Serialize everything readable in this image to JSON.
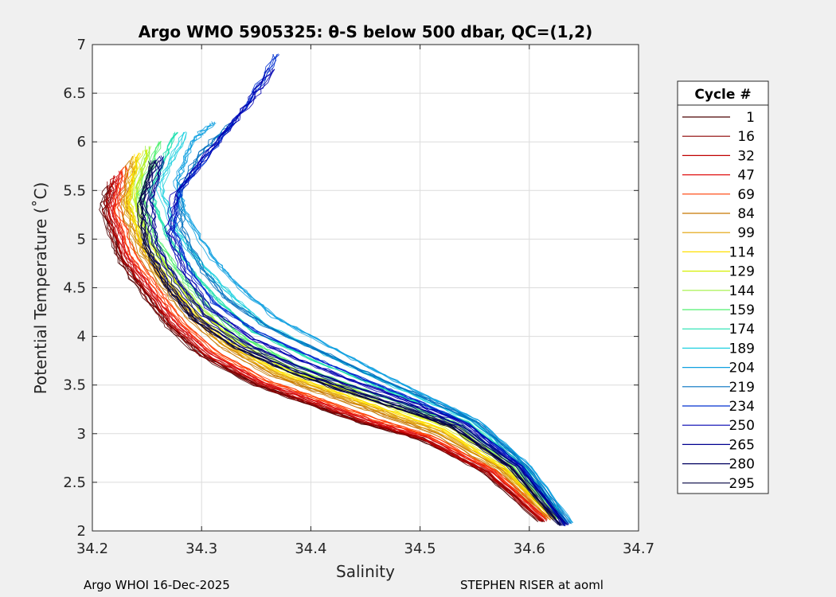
{
  "chart_data": {
    "type": "line",
    "title": "Argo WMO 5905325: θ-S below 500 dbar,  QC=(1,2)",
    "xlabel": "Salinity",
    "ylabel": "Potential Temperature (˚C)",
    "xlim": [
      34.2,
      34.7
    ],
    "ylim": [
      2,
      7
    ],
    "x_ticks": [
      "34.2",
      "34.3",
      "34.4",
      "34.5",
      "34.6",
      "34.7"
    ],
    "y_ticks": [
      "2",
      "2.5",
      "3",
      "3.5",
      "4",
      "4.5",
      "5",
      "5.5",
      "6",
      "6.5",
      "7"
    ],
    "grid": true,
    "legend": {
      "title": "Cycle #",
      "placement": "right",
      "entries": [
        {
          "label": "1",
          "color": "#4a0000"
        },
        {
          "label": "16",
          "color": "#8b0000"
        },
        {
          "label": "32",
          "color": "#c00000"
        },
        {
          "label": "47",
          "color": "#e01010"
        },
        {
          "label": "69",
          "color": "#ff3b00"
        },
        {
          "label": "84",
          "color": "#c87800"
        },
        {
          "label": "99",
          "color": "#e0a000"
        },
        {
          "label": "114",
          "color": "#ffe000"
        },
        {
          "label": "129",
          "color": "#d6f000"
        },
        {
          "label": "144",
          "color": "#a0f040"
        },
        {
          "label": "159",
          "color": "#50f070"
        },
        {
          "label": "174",
          "color": "#20e0b0"
        },
        {
          "label": "189",
          "color": "#20d0e0"
        },
        {
          "label": "204",
          "color": "#10a0e0"
        },
        {
          "label": "219",
          "color": "#0070c0"
        },
        {
          "label": "234",
          "color": "#0030d0"
        },
        {
          "label": "250",
          "color": "#0000b0"
        },
        {
          "label": "265",
          "color": "#000090"
        },
        {
          "label": "280",
          "color": "#000060"
        },
        {
          "label": "295",
          "color": "#000040"
        }
      ]
    },
    "series": [
      {
        "name": "1",
        "color": "#4a0000",
        "x": [
          34.61,
          34.56,
          34.5,
          34.45,
          34.4,
          34.35,
          34.3,
          34.27,
          34.25,
          34.225,
          34.21,
          34.215
        ],
        "y": [
          2.1,
          2.6,
          2.95,
          3.1,
          3.3,
          3.5,
          3.8,
          4.1,
          4.4,
          4.8,
          5.3,
          5.55
        ]
      },
      {
        "name": "16",
        "color": "#8b0000",
        "x": [
          34.612,
          34.562,
          34.502,
          34.452,
          34.402,
          34.352,
          34.302,
          34.272,
          34.252,
          34.227,
          34.213,
          34.218
        ],
        "y": [
          2.1,
          2.6,
          2.95,
          3.1,
          3.3,
          3.5,
          3.8,
          4.1,
          4.4,
          4.8,
          5.3,
          5.6
        ]
      },
      {
        "name": "32",
        "color": "#c00000",
        "x": [
          34.614,
          34.564,
          34.504,
          34.454,
          34.404,
          34.354,
          34.305,
          34.275,
          34.255,
          34.23,
          34.216,
          34.222
        ],
        "y": [
          2.1,
          2.6,
          2.95,
          3.12,
          3.32,
          3.52,
          3.82,
          4.12,
          4.42,
          4.82,
          5.3,
          5.65
        ]
      },
      {
        "name": "47",
        "color": "#e01010",
        "x": [
          34.615,
          34.566,
          34.506,
          34.456,
          34.406,
          34.356,
          34.308,
          34.278,
          34.258,
          34.233,
          34.219,
          34.226
        ],
        "y": [
          2.12,
          2.62,
          2.97,
          3.13,
          3.33,
          3.53,
          3.83,
          4.13,
          4.43,
          4.83,
          5.32,
          5.7
        ]
      },
      {
        "name": "69",
        "color": "#ff3b00",
        "x": [
          34.617,
          34.568,
          34.508,
          34.458,
          34.408,
          34.358,
          34.311,
          34.281,
          34.261,
          34.236,
          34.222,
          34.23
        ],
        "y": [
          2.12,
          2.62,
          2.98,
          3.15,
          3.35,
          3.55,
          3.85,
          4.15,
          4.45,
          4.85,
          5.33,
          5.75
        ]
      },
      {
        "name": "84",
        "color": "#c87800",
        "x": [
          34.62,
          34.572,
          34.514,
          34.464,
          34.414,
          34.364,
          34.318,
          34.288,
          34.266,
          34.242,
          34.228,
          34.236
        ],
        "y": [
          2.12,
          2.64,
          3.0,
          3.2,
          3.4,
          3.6,
          3.9,
          4.2,
          4.5,
          4.9,
          5.35,
          5.8
        ]
      },
      {
        "name": "99",
        "color": "#e0a000",
        "x": [
          34.621,
          34.574,
          34.517,
          34.467,
          34.417,
          34.367,
          34.32,
          34.29,
          34.268,
          34.244,
          34.23,
          34.239
        ],
        "y": [
          2.12,
          2.64,
          3.02,
          3.22,
          3.42,
          3.62,
          3.92,
          4.22,
          4.52,
          4.92,
          5.37,
          5.85
        ]
      },
      {
        "name": "114",
        "color": "#ffe000",
        "x": [
          34.622,
          34.576,
          34.52,
          34.47,
          34.42,
          34.37,
          34.323,
          34.293,
          34.27,
          34.246,
          34.232,
          34.242
        ],
        "y": [
          2.13,
          2.65,
          3.05,
          3.24,
          3.44,
          3.64,
          3.94,
          4.24,
          4.54,
          4.94,
          5.38,
          5.88
        ]
      },
      {
        "name": "129",
        "color": "#d6f000",
        "x": [
          34.624,
          34.58,
          34.525,
          34.475,
          34.425,
          34.375,
          34.327,
          34.296,
          34.274,
          34.25,
          34.236,
          34.247
        ],
        "y": [
          2.13,
          2.66,
          3.07,
          3.26,
          3.46,
          3.66,
          3.96,
          4.26,
          4.56,
          4.96,
          5.4,
          5.92
        ]
      },
      {
        "name": "144",
        "color": "#a0f040",
        "x": [
          34.626,
          34.583,
          34.53,
          34.48,
          34.43,
          34.38,
          34.33,
          34.3,
          34.277,
          34.252,
          34.238,
          34.252
        ],
        "y": [
          2.13,
          2.67,
          3.09,
          3.28,
          3.48,
          3.68,
          3.98,
          4.28,
          4.58,
          4.98,
          5.42,
          5.95
        ]
      },
      {
        "name": "159",
        "color": "#50f070",
        "x": [
          34.628,
          34.586,
          34.535,
          34.486,
          34.436,
          34.386,
          34.336,
          34.306,
          34.283,
          34.258,
          34.244,
          34.262
        ],
        "y": [
          2.13,
          2.68,
          3.1,
          3.3,
          3.5,
          3.7,
          4.0,
          4.3,
          4.6,
          5.0,
          5.45,
          6.0
        ]
      },
      {
        "name": "174",
        "color": "#20e0b0",
        "x": [
          34.632,
          34.592,
          34.542,
          34.494,
          34.446,
          34.398,
          34.346,
          34.316,
          34.292,
          34.266,
          34.252,
          34.275
        ],
        "y": [
          2.1,
          2.68,
          3.12,
          3.33,
          3.55,
          3.77,
          4.05,
          4.35,
          4.65,
          5.05,
          5.5,
          6.1
        ]
      },
      {
        "name": "189",
        "color": "#20d0e0",
        "x": [
          34.635,
          34.596,
          34.548,
          34.502,
          34.456,
          34.41,
          34.358,
          34.328,
          34.302,
          34.276,
          34.262,
          34.285
        ],
        "y": [
          2.08,
          2.68,
          3.14,
          3.36,
          3.6,
          3.84,
          4.12,
          4.42,
          4.72,
          5.1,
          5.55,
          6.1
        ]
      },
      {
        "name": "204",
        "color": "#10a0e0",
        "x": [
          34.638,
          34.6,
          34.552,
          34.506,
          34.46,
          34.416,
          34.366,
          34.334,
          34.31,
          34.286,
          34.276,
          34.29,
          34.31
        ],
        "y": [
          2.08,
          2.66,
          3.14,
          3.38,
          3.64,
          3.9,
          4.2,
          4.5,
          4.8,
          5.2,
          5.6,
          6.0,
          6.2
        ]
      },
      {
        "name": "219",
        "color": "#0070c0",
        "x": [
          34.636,
          34.598,
          34.552,
          34.506,
          34.456,
          34.41,
          34.36,
          34.322,
          34.3,
          34.282,
          34.28,
          34.3,
          34.33
        ],
        "y": [
          2.08,
          2.66,
          3.12,
          3.36,
          3.6,
          3.84,
          4.1,
          4.4,
          4.7,
          5.1,
          5.5,
          5.9,
          6.2
        ]
      },
      {
        "name": "234",
        "color": "#0030d0",
        "x": [
          34.634,
          34.594,
          34.546,
          34.498,
          34.45,
          34.4,
          34.352,
          34.312,
          34.29,
          34.276,
          34.282,
          34.31,
          34.345,
          34.37
        ],
        "y": [
          2.06,
          2.66,
          3.1,
          3.34,
          3.56,
          3.8,
          4.05,
          4.35,
          4.7,
          5.1,
          5.5,
          5.9,
          6.4,
          6.9
        ]
      },
      {
        "name": "250",
        "color": "#0000b0",
        "x": [
          34.633,
          34.592,
          34.542,
          34.494,
          34.444,
          34.394,
          34.346,
          34.306,
          34.284,
          34.27,
          34.276,
          34.305,
          34.34,
          34.365
        ],
        "y": [
          2.06,
          2.66,
          3.1,
          3.32,
          3.52,
          3.74,
          3.98,
          4.3,
          4.66,
          5.06,
          5.46,
          5.88,
          6.35,
          6.75
        ]
      },
      {
        "name": "265",
        "color": "#000090",
        "x": [
          34.632,
          34.588,
          34.536,
          34.488,
          34.438,
          34.388,
          34.34,
          34.3,
          34.276,
          34.256,
          34.252,
          34.262
        ],
        "y": [
          2.06,
          2.66,
          3.08,
          3.3,
          3.48,
          3.68,
          3.92,
          4.22,
          4.56,
          4.96,
          5.4,
          5.85
        ]
      },
      {
        "name": "280",
        "color": "#000060",
        "x": [
          34.63,
          34.585,
          34.532,
          34.484,
          34.434,
          34.384,
          34.336,
          34.296,
          34.272,
          34.252,
          34.248,
          34.26
        ],
        "y": [
          2.06,
          2.66,
          3.08,
          3.28,
          3.46,
          3.66,
          3.9,
          4.2,
          4.54,
          4.94,
          5.38,
          5.82
        ]
      },
      {
        "name": "295",
        "color": "#000040",
        "x": [
          34.629,
          34.582,
          34.528,
          34.48,
          34.43,
          34.38,
          34.332,
          34.292,
          34.268,
          34.248,
          34.244,
          34.256
        ],
        "y": [
          2.06,
          2.66,
          3.08,
          3.26,
          3.44,
          3.64,
          3.88,
          4.18,
          4.52,
          4.92,
          5.36,
          5.8
        ]
      }
    ]
  },
  "footer": {
    "left": "Argo WHOI 16-Dec-2025",
    "right": "STEPHEN RISER at aoml"
  }
}
